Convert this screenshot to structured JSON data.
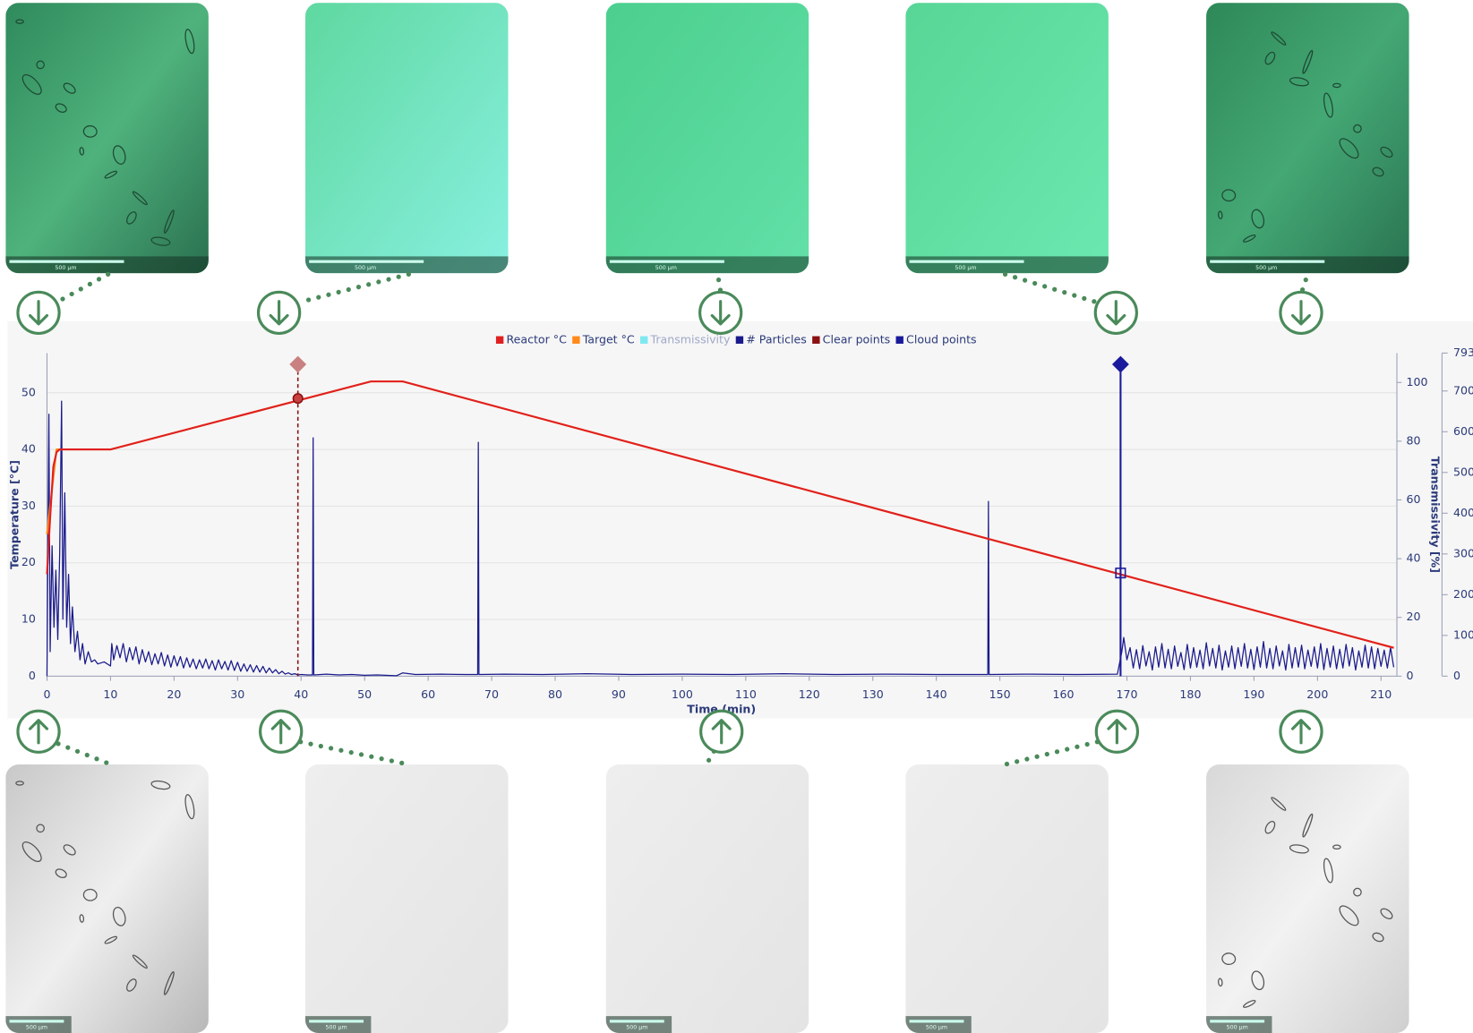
{
  "chart_data": {
    "type": "line",
    "xlabel": "Time (min)",
    "ylabel": "Temperature [°C]",
    "y2label": "Transmissivity [%]",
    "xlim": [
      0,
      212.5
    ],
    "xticks": [
      0,
      10,
      20,
      30,
      40,
      50,
      60,
      70,
      80,
      90,
      100,
      110,
      120,
      130,
      140,
      150,
      160,
      170,
      180,
      190,
      200,
      210
    ],
    "ylim": [
      0,
      57
    ],
    "yticks": [
      0,
      10,
      20,
      30,
      40,
      50
    ],
    "y2lim": [
      0,
      110
    ],
    "y2ticks": [
      0,
      20,
      40,
      60,
      80,
      100
    ],
    "y3lim": [
      0,
      793
    ],
    "y3ticks": [
      0,
      100,
      200,
      300,
      400,
      500,
      600,
      700,
      793
    ],
    "grid": true,
    "legend": "top",
    "series": [
      {
        "name": "Reactor °C",
        "color": "#e02020",
        "type": "line",
        "axis": "y",
        "x": [
          0,
          0.5,
          1,
          1.5,
          2,
          10,
          51,
          56,
          212
        ],
        "values": [
          18,
          28,
          37,
          39.5,
          40,
          40,
          52,
          52,
          5
        ]
      },
      {
        "name": "Target °C",
        "color": "#ff8a1a",
        "type": "line",
        "axis": "y",
        "x": [
          0,
          1.5,
          10,
          51,
          56,
          212
        ],
        "values": [
          25,
          40,
          40,
          52,
          52,
          5
        ]
      },
      {
        "name": "Transmissivity",
        "color": "#7fe8f0",
        "type": "line",
        "axis": "y2",
        "hidden": true,
        "x": [],
        "values": []
      },
      {
        "name": "# Particles",
        "color": "#1a1a8c",
        "type": "line",
        "axis": "y3",
        "x": [
          0,
          0.3,
          0.5,
          0.8,
          1.1,
          1.4,
          1.7,
          2,
          2.3,
          2.5,
          2.8,
          3.1,
          3.4,
          3.7,
          4,
          4.4,
          4.8,
          5.2,
          5.6,
          6,
          6.5,
          7,
          7.5,
          8,
          9,
          10,
          10.2,
          10.5,
          11,
          11.5,
          12,
          12.5,
          13,
          13.5,
          14,
          14.5,
          15,
          15.5,
          16,
          16.5,
          17,
          17.5,
          18,
          18.5,
          19,
          19.5,
          20,
          20.5,
          21,
          21.5,
          22,
          22.5,
          23,
          23.5,
          24,
          24.5,
          25,
          25.5,
          26,
          26.5,
          27,
          27.5,
          28,
          28.5,
          29,
          29.5,
          30,
          30.5,
          31,
          31.5,
          32,
          32.5,
          33,
          33.5,
          34,
          34.5,
          35,
          35.5,
          36,
          36.5,
          37,
          37.5,
          38,
          38.5,
          39,
          39.5,
          40,
          41,
          41.8,
          41.9,
          42,
          44,
          46,
          48,
          50,
          52,
          55,
          56,
          58,
          62,
          66,
          67.8,
          67.9,
          68,
          72,
          78,
          85,
          92,
          100,
          108,
          116,
          124,
          132,
          140,
          148.1,
          148.2,
          148.3,
          155,
          162,
          168.5,
          169.2,
          169.5,
          170,
          170.5,
          171,
          171.5,
          172,
          172.5,
          173,
          173.5,
          174,
          174.5,
          175,
          175.5,
          176,
          176.5,
          177,
          177.5,
          178,
          178.5,
          179,
          179.5,
          180,
          180.5,
          181,
          181.5,
          182,
          182.5,
          183,
          183.5,
          184,
          184.5,
          185,
          185.5,
          186,
          186.5,
          187,
          187.5,
          188,
          188.5,
          189,
          189.5,
          190,
          190.5,
          191,
          191.5,
          192,
          192.5,
          193,
          193.5,
          194,
          194.5,
          195,
          195.5,
          196,
          196.5,
          197,
          197.5,
          198,
          198.5,
          199,
          199.5,
          200,
          200.5,
          201,
          201.5,
          202,
          202.5,
          203,
          203.5,
          204,
          204.5,
          205,
          205.5,
          206,
          206.5,
          207,
          207.5,
          208,
          208.5,
          209,
          209.5,
          210,
          210.5,
          211,
          211.5,
          212
        ],
        "values": [
          0,
          643,
          60,
          320,
          120,
          260,
          90,
          300,
          675,
          140,
          450,
          120,
          250,
          80,
          170,
          60,
          110,
          40,
          80,
          30,
          60,
          35,
          40,
          30,
          35,
          25,
          80,
          40,
          75,
          45,
          80,
          35,
          70,
          40,
          72,
          30,
          65,
          35,
          60,
          28,
          55,
          30,
          58,
          25,
          52,
          22,
          50,
          25,
          48,
          20,
          45,
          22,
          42,
          18,
          40,
          20,
          42,
          18,
          38,
          15,
          40,
          18,
          36,
          15,
          38,
          14,
          34,
          12,
          30,
          12,
          28,
          10,
          26,
          10,
          24,
          8,
          20,
          8,
          16,
          6,
          12,
          5,
          8,
          4,
          6,
          3,
          4,
          3,
          3,
          585,
          3,
          5,
          3,
          4,
          2,
          3,
          1,
          8,
          4,
          5,
          4,
          4,
          574,
          4,
          5,
          4,
          6,
          4,
          5,
          4,
          6,
          4,
          5,
          4,
          4,
          429,
          4,
          5,
          4,
          5,
          60,
          95,
          40,
          70,
          20,
          65,
          18,
          75,
          25,
          60,
          15,
          72,
          22,
          80,
          20,
          66,
          18,
          74,
          24,
          58,
          16,
          78,
          20,
          70,
          22,
          64,
          18,
          82,
          25,
          68,
          20,
          76,
          15,
          62,
          22,
          74,
          18,
          70,
          24,
          80,
          20,
          66,
          16,
          72,
          22,
          85,
          20,
          68,
          18,
          74,
          25,
          62,
          15,
          78,
          20,
          70,
          22,
          76,
          18,
          64,
          24,
          72,
          20,
          80,
          16,
          68,
          22,
          74,
          18,
          66,
          20,
          78,
          25,
          70,
          15,
          62,
          22,
          76,
          20,
          72,
          18,
          68,
          24,
          64,
          20,
          70,
          22
        ]
      },
      {
        "name": "Clear points",
        "color": "#8b1010",
        "type": "scatter",
        "marker": "circle",
        "axis": "y",
        "x": [
          39.5
        ],
        "values": [
          49
        ]
      },
      {
        "name": "Cloud points",
        "color": "#1a1a9c",
        "type": "scatter",
        "marker": "square",
        "axis": "y",
        "x": [
          169
        ],
        "values": [
          18.2
        ]
      }
    ]
  },
  "images": {
    "top": [
      {
        "scale": "500 µm"
      },
      {
        "scale": "500 µm"
      },
      {
        "scale": "500 µm"
      },
      {
        "scale": "500 µm"
      },
      {
        "scale": "500 µm"
      }
    ],
    "bottom": [
      {
        "scale": "500 µm"
      },
      {
        "scale": "500 µm"
      },
      {
        "scale": "500 µm"
      },
      {
        "scale": "500 µm"
      },
      {
        "scale": "500 µm"
      }
    ]
  }
}
